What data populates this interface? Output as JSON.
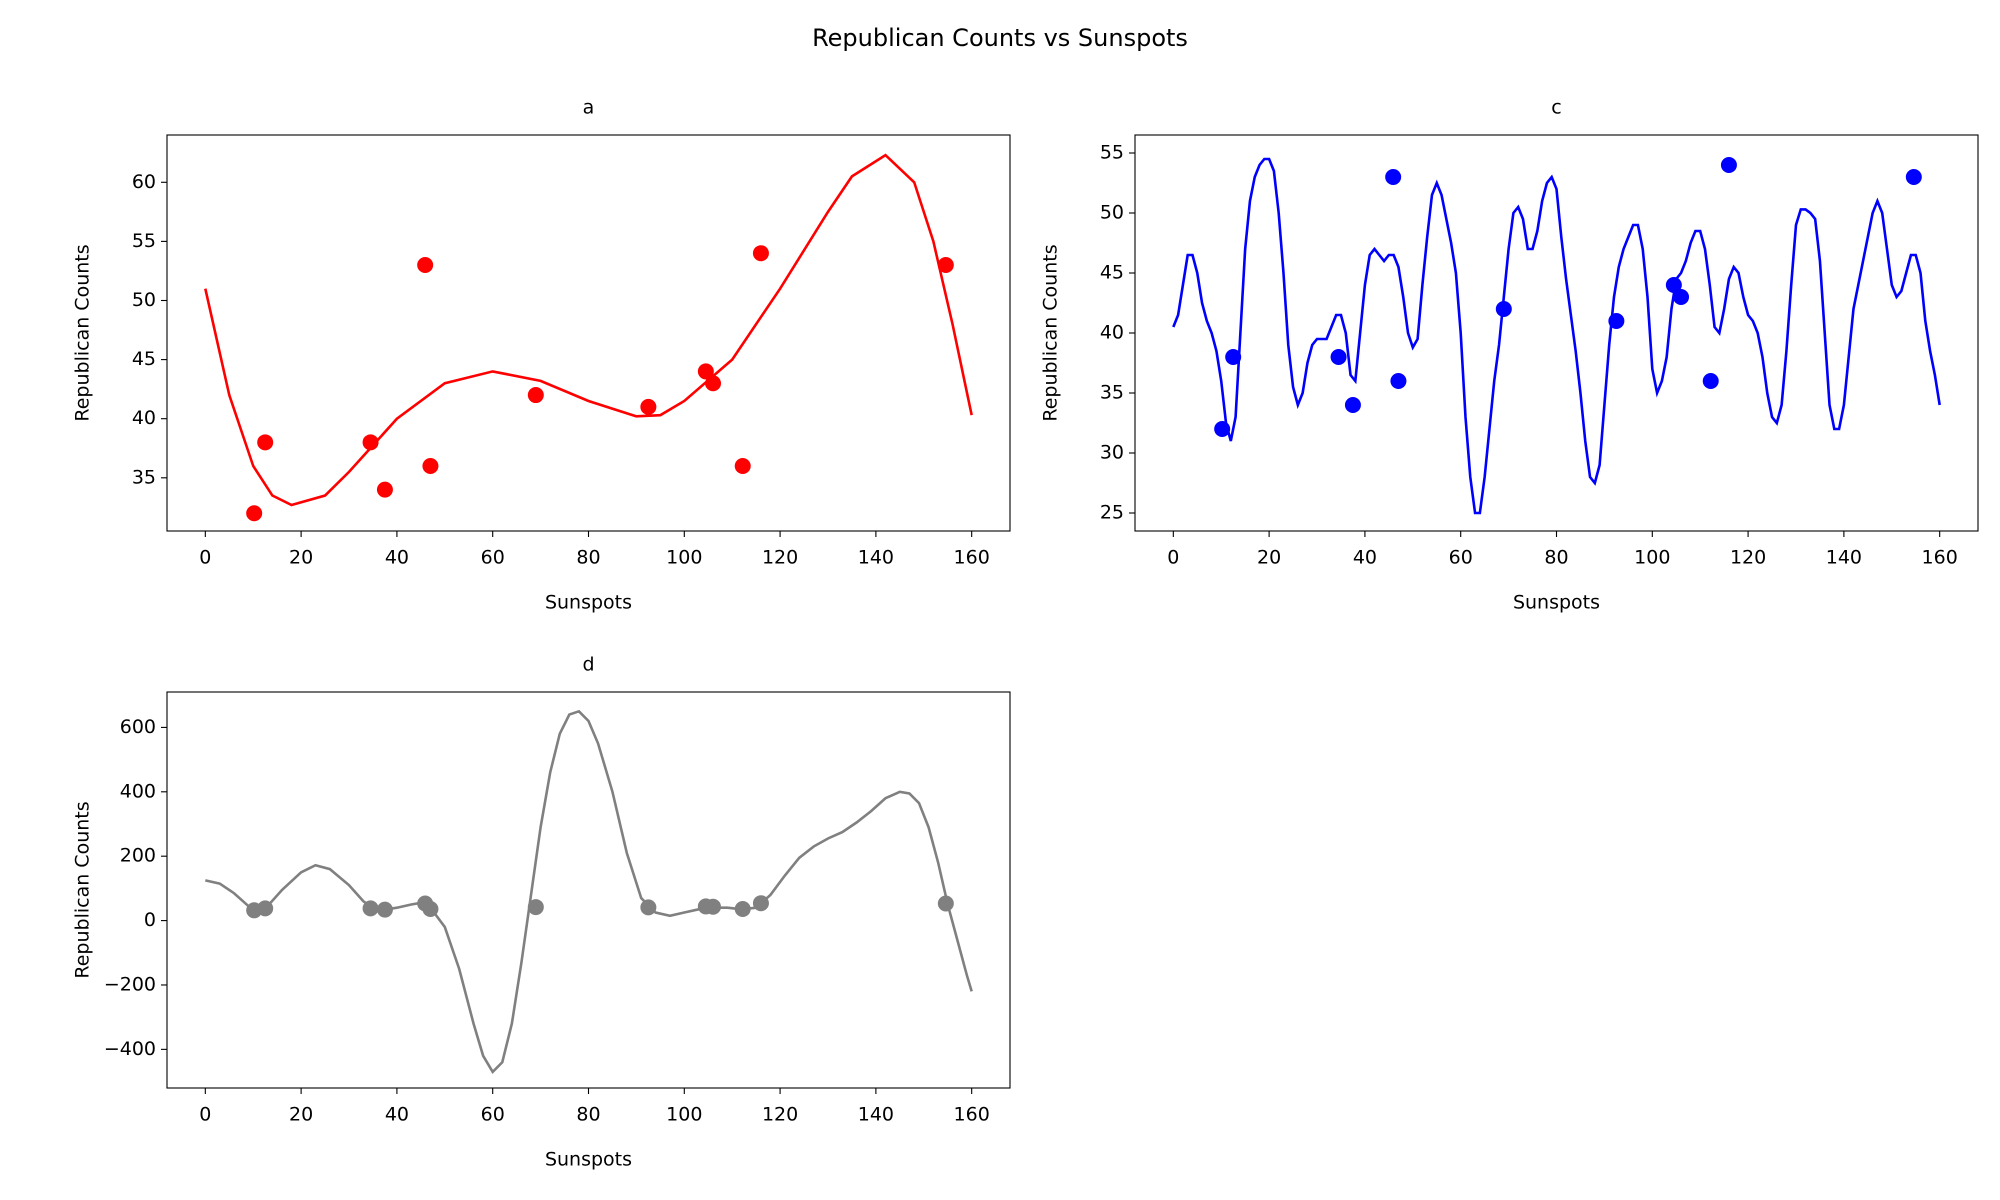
{
  "title": "Republican Counts vs Sunspots",
  "chart_data": [
    {
      "type": "scatter",
      "title": "a",
      "x_label": "Sunspots",
      "y_label": "Republican Counts",
      "color": "#ff0000",
      "xlim": [
        -8,
        168
      ],
      "xticks": [
        0,
        20,
        40,
        60,
        80,
        100,
        120,
        140,
        160
      ],
      "ylim": [
        30.5,
        64
      ],
      "yticks": [
        35,
        40,
        45,
        50,
        55,
        60
      ],
      "points": {
        "x": [
          10.2,
          12.5,
          34.5,
          37.5,
          45.9,
          47,
          69,
          92.5,
          104.5,
          106,
          112.2,
          116,
          154.6
        ],
        "values": [
          32,
          38,
          38,
          34,
          53,
          36,
          42,
          41,
          44,
          43,
          36,
          54,
          53
        ]
      },
      "curve": {
        "x": [
          0,
          5,
          10,
          14,
          18,
          25,
          30,
          40,
          50,
          60,
          70,
          80,
          90,
          95,
          100,
          110,
          120,
          130,
          135,
          142,
          148,
          152,
          156,
          160
        ],
        "values": [
          51,
          42,
          36,
          33.5,
          32.7,
          33.5,
          35.5,
          40,
          43,
          44,
          43.2,
          41.5,
          40.2,
          40.3,
          41.5,
          45,
          51,
          57.5,
          60.5,
          62.3,
          60,
          55,
          48,
          40.3
        ]
      }
    },
    {
      "type": "scatter",
      "title": "c",
      "x_label": "Sunspots",
      "y_label": "Republican Counts",
      "color": "#0000ff",
      "xlim": [
        -8,
        168
      ],
      "xticks": [
        0,
        20,
        40,
        60,
        80,
        100,
        120,
        140,
        160
      ],
      "ylim": [
        23.5,
        56.5
      ],
      "yticks": [
        25,
        30,
        35,
        40,
        45,
        50,
        55
      ],
      "points": {
        "x": [
          10.2,
          12.5,
          34.5,
          37.5,
          45.9,
          47,
          69,
          92.5,
          104.5,
          106,
          112.2,
          116,
          154.6
        ],
        "values": [
          32,
          38,
          38,
          34,
          53,
          36,
          42,
          41,
          44,
          43,
          36,
          54,
          53
        ]
      },
      "curve": {
        "x": [
          0,
          1,
          2,
          3,
          4,
          5,
          6,
          7,
          8,
          9,
          10,
          11,
          12,
          13,
          14,
          15,
          16,
          17,
          18,
          19,
          20,
          21,
          22,
          23,
          24,
          25,
          26,
          27,
          28,
          29,
          30,
          31,
          32,
          33,
          34,
          35,
          36,
          37,
          38,
          39,
          40,
          41,
          42,
          43,
          44,
          45,
          46,
          47,
          48,
          49,
          50,
          51,
          52,
          53,
          54,
          55,
          56,
          57,
          58,
          59,
          60,
          61,
          62,
          63,
          64,
          65,
          66,
          67,
          68,
          69,
          70,
          71,
          72,
          73,
          74,
          75,
          76,
          77,
          78,
          79,
          80,
          81,
          82,
          83,
          84,
          85,
          86,
          87,
          88,
          89,
          90,
          91,
          92,
          93,
          94,
          95,
          96,
          97,
          98,
          99,
          100,
          101,
          102,
          103,
          104,
          105,
          106,
          107,
          108,
          109,
          110,
          111,
          112,
          113,
          114,
          115,
          116,
          117,
          118,
          119,
          120,
          121,
          122,
          123,
          124,
          125,
          126,
          127,
          128,
          129,
          130,
          131,
          132,
          133,
          134,
          135,
          136,
          137,
          138,
          139,
          140,
          141,
          142,
          143,
          144,
          145,
          146,
          147,
          148,
          149,
          150,
          151,
          152,
          153,
          154,
          155,
          156,
          157,
          158,
          159,
          160
        ],
        "values": [
          40.5,
          41.5,
          44,
          46.5,
          46.5,
          45,
          42.5,
          41,
          40,
          38.5,
          36,
          32.5,
          31,
          33,
          40,
          47,
          51,
          53,
          54,
          54.5,
          54.5,
          53.5,
          50,
          45,
          39,
          35.5,
          34,
          35,
          37.5,
          39,
          39.5,
          39.5,
          39.5,
          40.5,
          41.5,
          41.5,
          40,
          36.5,
          36,
          40,
          44,
          46.5,
          47,
          46.5,
          46,
          46.5,
          46.5,
          45.5,
          43,
          40,
          38.8,
          39.5,
          44,
          48,
          51.5,
          52.5,
          51.5,
          49.5,
          47.5,
          45,
          40,
          33,
          28,
          25,
          25,
          28,
          32,
          36,
          39,
          43,
          47,
          50,
          50.5,
          49.5,
          47,
          47,
          48.5,
          51,
          52.5,
          53,
          52,
          48,
          44.5,
          41.5,
          38.5,
          35,
          31,
          28,
          27.5,
          29,
          34,
          39,
          43,
          45.5,
          47,
          48,
          49,
          49,
          47,
          43,
          37,
          35,
          36,
          38,
          42,
          44.5,
          45,
          46,
          47.5,
          48.5,
          48.5,
          47,
          44,
          40.5,
          40,
          42,
          44.5,
          45.5,
          45,
          43,
          41.5,
          41,
          40,
          38,
          35,
          33,
          32.5,
          34,
          38.5,
          44,
          49,
          50.3,
          50.3,
          50,
          49.5,
          46,
          40,
          34,
          32,
          32,
          34,
          38,
          42,
          44,
          46,
          48,
          50,
          51,
          50,
          47,
          44,
          43,
          43.5,
          45,
          46.5,
          46.5,
          45,
          41,
          38.5,
          36.5,
          34
        ]
      }
    },
    {
      "type": "scatter",
      "title": "d",
      "x_label": "Sunspots",
      "y_label": "Republican Counts",
      "color": "#808080",
      "xlim": [
        -8,
        168
      ],
      "xticks": [
        0,
        20,
        40,
        60,
        80,
        100,
        120,
        140,
        160
      ],
      "ylim": [
        -520,
        710
      ],
      "yticks": [
        {
          "value": -400,
          "label": "−400"
        },
        {
          "value": -200,
          "label": "−200"
        },
        0,
        200,
        400,
        600
      ],
      "points": {
        "x": [
          10.2,
          12.5,
          34.5,
          37.5,
          45.9,
          47,
          69,
          92.5,
          104.5,
          106,
          112.2,
          116,
          154.6
        ],
        "values": [
          32,
          38,
          38,
          34,
          53,
          36,
          42,
          41,
          44,
          43,
          36,
          54,
          53
        ]
      },
      "curve": {
        "x": [
          0,
          3,
          6,
          9,
          11,
          13,
          16,
          20,
          23,
          26,
          30,
          33,
          35,
          38,
          40,
          43,
          45,
          47,
          50,
          53,
          56,
          58,
          60,
          62,
          64,
          66,
          68,
          70,
          72,
          74,
          76,
          78,
          80,
          82,
          85,
          88,
          91,
          94,
          97,
          100,
          103,
          106,
          109,
          112,
          115,
          118,
          121,
          124,
          127,
          130,
          133,
          136,
          139,
          142,
          145,
          147,
          149,
          151,
          153,
          155,
          157,
          159,
          160
        ],
        "values": [
          125,
          115,
          85,
          45,
          30,
          45,
          95,
          150,
          172,
          160,
          110,
          60,
          40,
          35,
          40,
          50,
          55,
          40,
          -20,
          -150,
          -320,
          -420,
          -470,
          -440,
          -320,
          -130,
          80,
          290,
          460,
          580,
          640,
          650,
          620,
          550,
          400,
          210,
          70,
          25,
          15,
          25,
          35,
          40,
          40,
          35,
          40,
          80,
          140,
          195,
          230,
          255,
          275,
          305,
          340,
          380,
          400,
          395,
          365,
          290,
          180,
          50,
          -60,
          -170,
          -220
        ]
      }
    }
  ]
}
